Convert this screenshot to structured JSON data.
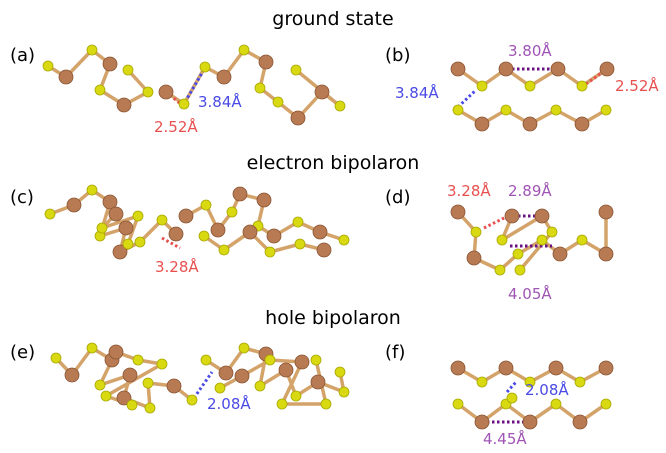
{
  "titles": {
    "ground": "ground state",
    "electron": "electron bipolaron",
    "hole": "hole bipolaron"
  },
  "panels": {
    "a": "(a)",
    "b": "(b)",
    "c": "(c)",
    "d": "(d)",
    "e": "(e)",
    "f": "(f)"
  },
  "distances": {
    "a_blue": "3.84Å",
    "a_red": "2.52Å",
    "b_purple": "3.80Å",
    "b_blue": "3.84Å",
    "b_red": "2.52Å",
    "c_red": "3.28Å",
    "d_red": "3.28Å",
    "d_purple_top": "2.89Å",
    "d_purple_bottom": "4.05Å",
    "e_blue": "2.08Å",
    "f_blue": "2.08Å",
    "f_purple": "4.45Å"
  },
  "colors": {
    "metal_atom": "#b87a52",
    "sulfur_atom": "#d9d912",
    "red_dist": "#e85050",
    "blue_dist": "#4a4ae6",
    "purple_dist": "#a055b5",
    "purple_dots": "#6a1080"
  }
}
